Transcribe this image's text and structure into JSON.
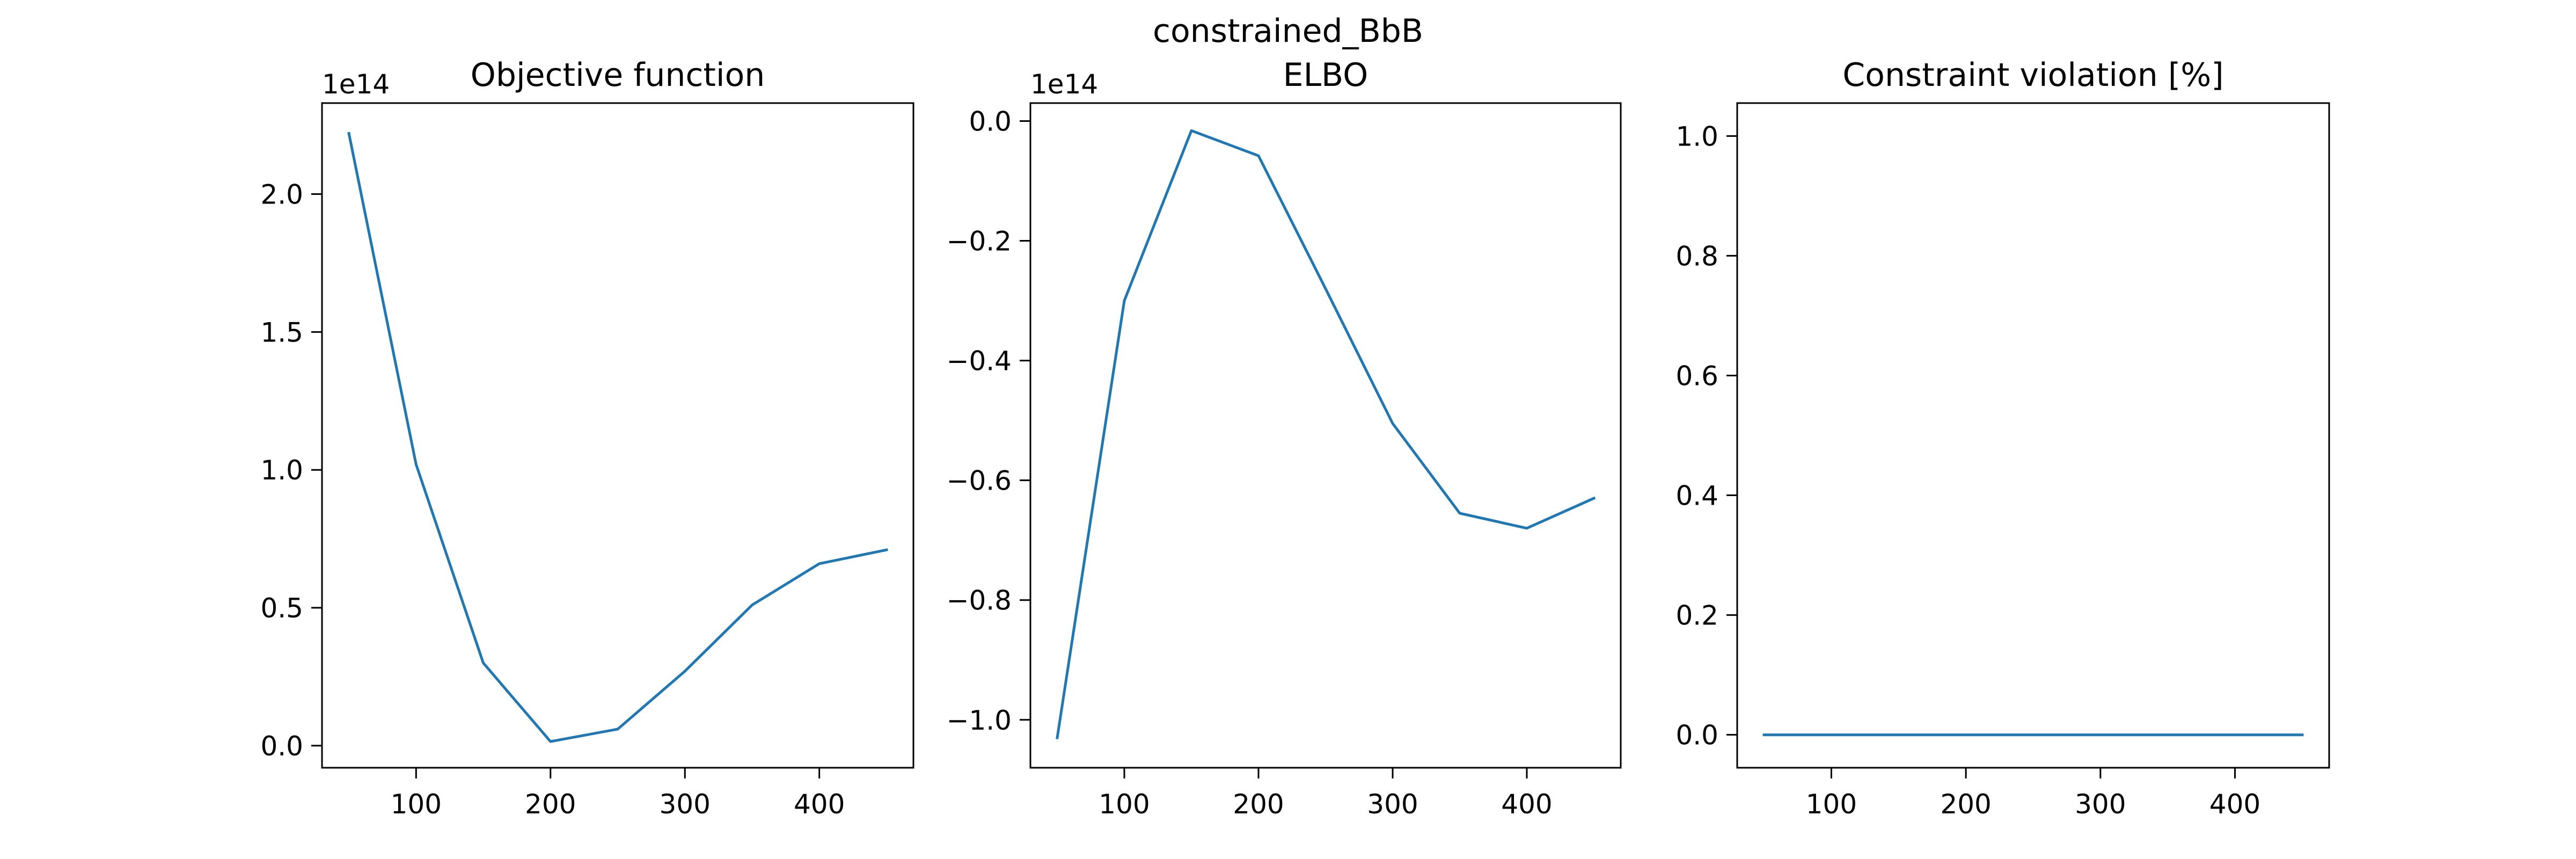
{
  "figure": {
    "suptitle": "constrained_BbB"
  },
  "chart_data": [
    {
      "type": "line",
      "title": "Objective function",
      "xlabel": "",
      "ylabel": "",
      "offset_label": "1e14",
      "x": [
        50,
        100,
        150,
        200,
        250,
        300,
        350,
        400,
        450
      ],
      "series": [
        {
          "values": [
            222000000000000.0,
            102000000000000.0,
            30000000000000.0,
            1500000000000.0,
            6000000000000.0,
            27000000000000.0,
            51000000000000.0,
            66000000000000.0,
            71000000000000.0
          ]
        }
      ],
      "xlim": [
        30,
        470
      ],
      "ylim": [
        -8000000000000.0,
        233000000000000.0
      ],
      "xticks": [
        100,
        200,
        300,
        400
      ],
      "xtick_labels": [
        "100",
        "200",
        "300",
        "400"
      ],
      "yticks": [
        0,
        50000000000000.0,
        100000000000000.0,
        150000000000000.0,
        200000000000000.0
      ],
      "ytick_labels": [
        "0.0",
        "0.5",
        "1.0",
        "1.5",
        "2.0"
      ],
      "grid": false,
      "line_color": "#1f77b4"
    },
    {
      "type": "line",
      "title": "ELBO",
      "xlabel": "",
      "ylabel": "",
      "offset_label": "1e14",
      "x": [
        50,
        100,
        150,
        200,
        250,
        300,
        350,
        400,
        450
      ],
      "series": [
        {
          "values": [
            -103000000000000.0,
            -30000000000000.0,
            -1600000000000.0,
            -5800000000000.0,
            -28000000000000.0,
            -50500000000000.0,
            -65500000000000.0,
            -68000000000000.0,
            -63000000000000.0
          ]
        }
      ],
      "xlim": [
        30,
        470
      ],
      "ylim": [
        -108000000000000.0,
        3000000000000.0
      ],
      "xticks": [
        100,
        200,
        300,
        400
      ],
      "xtick_labels": [
        "100",
        "200",
        "300",
        "400"
      ],
      "yticks": [
        -100000000000000.0,
        -80000000000000.0,
        -60000000000000.0,
        -40000000000000.0,
        -20000000000000.0,
        0
      ],
      "ytick_labels": [
        "−1.0",
        "−0.8",
        "−0.6",
        "−0.4",
        "−0.2",
        "0.0"
      ],
      "grid": false,
      "line_color": "#1f77b4"
    },
    {
      "type": "line",
      "title": "Constraint violation [%]",
      "xlabel": "",
      "ylabel": "",
      "offset_label": "",
      "x": [
        50,
        100,
        150,
        200,
        250,
        300,
        350,
        400,
        450
      ],
      "series": [
        {
          "values": [
            0,
            0,
            0,
            0,
            0,
            0,
            0,
            0,
            0
          ]
        }
      ],
      "xlim": [
        30,
        470
      ],
      "ylim": [
        -0.055,
        1.055
      ],
      "xticks": [
        100,
        200,
        300,
        400
      ],
      "xtick_labels": [
        "100",
        "200",
        "300",
        "400"
      ],
      "yticks": [
        0,
        0.2,
        0.4,
        0.6,
        0.8,
        1.0
      ],
      "ytick_labels": [
        "0.0",
        "0.2",
        "0.4",
        "0.6",
        "0.8",
        "1.0"
      ],
      "grid": false,
      "line_color": "#1f77b4"
    }
  ]
}
